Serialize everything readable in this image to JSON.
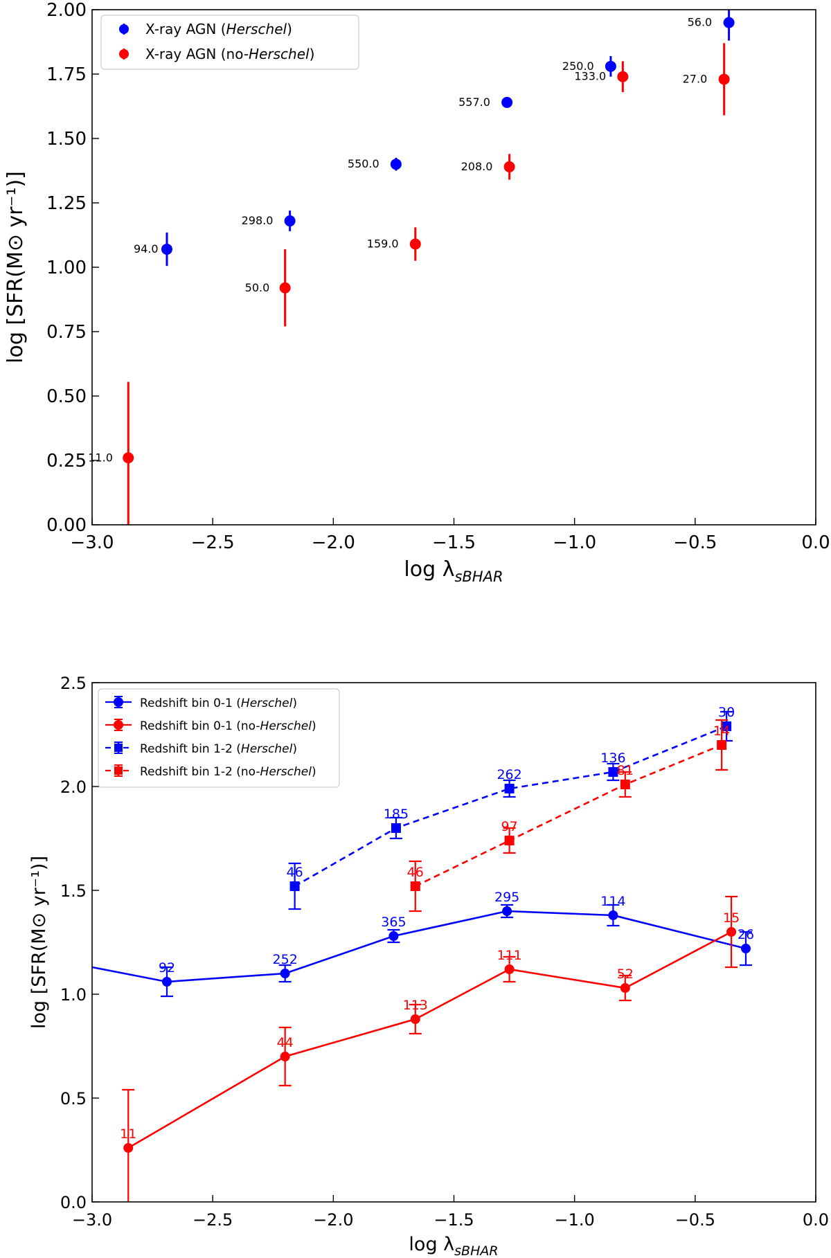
{
  "colors": {
    "herschel": "#0000ff",
    "no_herschel": "#ff0000"
  },
  "chart_data": [
    {
      "type": "scatter",
      "title": "",
      "xlabel": "log λ_sBHAR",
      "xlabel_main": "log λ",
      "xlabel_sub": "sBHAR",
      "ylabel": "log [SFR(M⊙ yr⁻¹)]",
      "xlim": [
        -3.0,
        0.0
      ],
      "ylim": [
        0.0,
        2.0
      ],
      "grid": false,
      "legend_position": "top-left",
      "x_ticks": [
        -3.0,
        -2.5,
        -2.0,
        -1.5,
        -1.0,
        -0.5,
        0.0
      ],
      "x_tick_labels": [
        "−3.0",
        "−2.5",
        "−2.0",
        "−1.5",
        "−1.0",
        "−0.5",
        "0.0"
      ],
      "y_ticks": [
        0.0,
        0.25,
        0.5,
        0.75,
        1.0,
        1.25,
        1.5,
        1.75,
        2.0
      ],
      "y_tick_labels": [
        "0.00",
        "0.25",
        "0.50",
        "0.75",
        "1.00",
        "1.25",
        "1.50",
        "1.75",
        "2.00"
      ],
      "series": [
        {
          "name": "X-ray AGN (Herschel)",
          "legend_pre": "X-ray AGN (",
          "legend_italic": "Herschel",
          "legend_post": ")",
          "color": "#0000ff",
          "marker": "circle",
          "x": [
            -2.69,
            -2.18,
            -1.74,
            -1.28,
            -0.85,
            -0.36
          ],
          "y": [
            1.07,
            1.18,
            1.4,
            1.64,
            1.78,
            1.95
          ],
          "yerr": [
            0.065,
            0.04,
            0.025,
            0.02,
            0.04,
            0.07
          ],
          "labels": [
            "94.0",
            "298.0",
            "550.0",
            "557.0",
            "250.0",
            "56.0"
          ]
        },
        {
          "name": "X-ray AGN (no-Herschel)",
          "legend_pre": "X-ray AGN (no-",
          "legend_italic": "Herschel",
          "legend_post": ")",
          "color": "#ff0000",
          "marker": "circle",
          "x": [
            -2.85,
            -2.2,
            -1.66,
            -1.27,
            -0.8,
            -0.38
          ],
          "y": [
            0.26,
            0.92,
            1.09,
            1.39,
            1.74,
            1.73
          ],
          "yerr": [
            0.295,
            0.15,
            0.065,
            0.05,
            0.06,
            0.14
          ],
          "labels": [
            "11.0",
            "50.0",
            "159.0",
            "208.0",
            "133.0",
            "27.0"
          ]
        }
      ]
    },
    {
      "type": "line",
      "title": "",
      "xlabel": "log λ_sBHAR",
      "xlabel_main": "log λ",
      "xlabel_sub": "sBHAR",
      "ylabel": "log [SFR(M⊙ yr⁻¹)]",
      "xlim": [
        -3.0,
        0.0
      ],
      "ylim": [
        0.0,
        2.5
      ],
      "grid": false,
      "legend_position": "top-left",
      "x_ticks": [
        -3.0,
        -2.5,
        -2.0,
        -1.5,
        -1.0,
        -0.5,
        0.0
      ],
      "x_tick_labels": [
        "−3.0",
        "−2.5",
        "−2.0",
        "−1.5",
        "−1.0",
        "−0.5",
        "0.0"
      ],
      "y_ticks": [
        0.0,
        0.5,
        1.0,
        1.5,
        2.0,
        2.5
      ],
      "y_tick_labels": [
        "0.0",
        "0.5",
        "1.0",
        "1.5",
        "2.0",
        "2.5"
      ],
      "series": [
        {
          "name": "Redshift bin 0-1 (Herschel)",
          "legend_pre": "Redshift bin 0-1 (",
          "legend_italic": "Herschel",
          "legend_post": ")",
          "color": "#0000ff",
          "marker": "circle",
          "linestyle": "solid",
          "line_from_x": -3.0,
          "line_from_y": 1.13,
          "x": [
            -2.69,
            -2.2,
            -1.75,
            -1.28,
            -0.84,
            -0.29
          ],
          "y": [
            1.06,
            1.1,
            1.28,
            1.4,
            1.38,
            1.22
          ],
          "yerr": [
            0.07,
            0.04,
            0.03,
            0.03,
            0.05,
            0.08
          ],
          "labels": [
            "92",
            "252",
            "365",
            "295",
            "114",
            "26"
          ]
        },
        {
          "name": "Redshift bin 0-1 (no-Herschel)",
          "legend_pre": "Redshift bin 0-1 (no-",
          "legend_italic": "Herschel",
          "legend_post": ")",
          "color": "#ff0000",
          "marker": "circle",
          "linestyle": "solid",
          "x": [
            -2.85,
            -2.2,
            -1.66,
            -1.27,
            -0.79,
            -0.35
          ],
          "y": [
            0.26,
            0.7,
            0.88,
            1.12,
            1.03,
            1.3
          ],
          "yerr": [
            0.28,
            0.14,
            0.07,
            0.06,
            0.06,
            0.17
          ],
          "labels": [
            "11",
            "44",
            "113",
            "111",
            "52",
            "15"
          ]
        },
        {
          "name": "Redshift bin 1-2 (Herschel)",
          "legend_pre": "Redshift bin 1-2 (",
          "legend_italic": "Herschel",
          "legend_post": ")",
          "color": "#0000ff",
          "marker": "square",
          "linestyle": "dashed",
          "x": [
            -2.16,
            -1.74,
            -1.27,
            -0.84,
            -0.37
          ],
          "y": [
            1.52,
            1.8,
            1.99,
            2.07,
            2.29
          ],
          "yerr": [
            0.11,
            0.05,
            0.04,
            0.04,
            0.07
          ],
          "labels": [
            "46",
            "185",
            "262",
            "136",
            "30"
          ]
        },
        {
          "name": "Redshift bin 1-2 (no-Herschel)",
          "legend_pre": "Redshift bin 1-2 (no-",
          "legend_italic": "Herschel",
          "legend_post": ")",
          "color": "#ff0000",
          "marker": "square",
          "linestyle": "dashed",
          "x": [
            -1.66,
            -1.27,
            -0.79,
            -0.39
          ],
          "y": [
            1.52,
            1.74,
            2.01,
            2.2
          ],
          "yerr": [
            0.12,
            0.06,
            0.06,
            0.12
          ],
          "labels": [
            "46",
            "97",
            "81",
            "14"
          ]
        }
      ]
    }
  ]
}
